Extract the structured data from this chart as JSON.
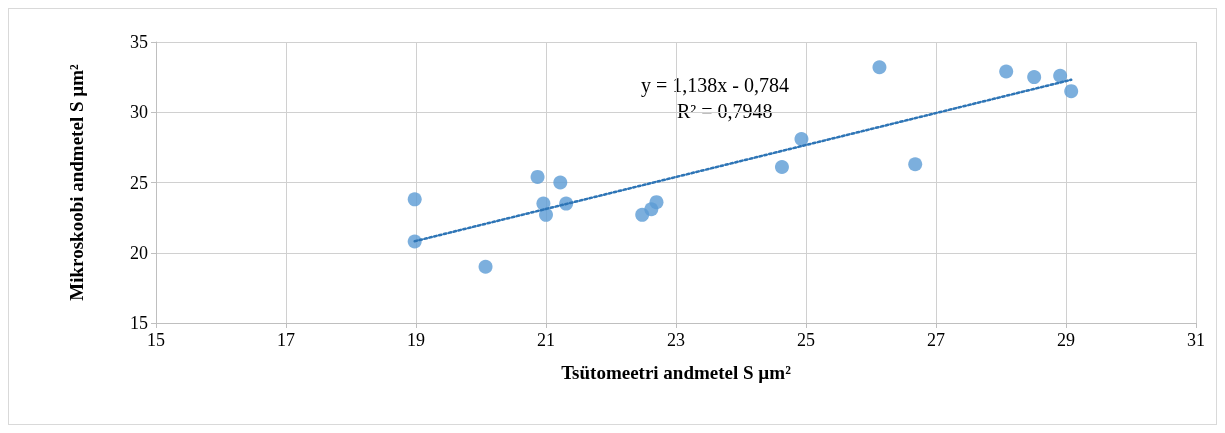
{
  "chart_data": {
    "type": "scatter",
    "xlabel": "Tsütomeetri andmetel S µm²",
    "ylabel": "Mikroskoobi andmetel S µm²",
    "xlim": [
      15,
      31
    ],
    "xticks": [
      15,
      17,
      19,
      21,
      23,
      25,
      27,
      29,
      31
    ],
    "ylim": [
      15,
      35
    ],
    "yticks": [
      15,
      20,
      25,
      30,
      35
    ],
    "grid": true,
    "marker": "circle",
    "series": [
      {
        "color": "#5b9bd5",
        "x": [
          18.98,
          18.98,
          20.07,
          20.87,
          20.96,
          21.0,
          21.22,
          21.31,
          22.48,
          22.62,
          22.7,
          24.63,
          24.93,
          26.13,
          26.68,
          28.08,
          28.51,
          28.91,
          29.08
        ],
        "values": [
          20.8,
          23.8,
          19.0,
          25.4,
          23.5,
          22.7,
          25.0,
          23.5,
          22.7,
          23.1,
          23.6,
          26.1,
          28.1,
          33.2,
          26.3,
          32.9,
          32.5,
          32.6,
          31.5
        ]
      },
      {
        "type": "line",
        "color": "#2e75b6",
        "line_style": "dotted",
        "marker": "none",
        "x": [
          18.98,
          29.08
        ],
        "values": [
          20.82,
          32.31
        ]
      }
    ],
    "annotations": [
      "y = 1,138x - 0,784",
      "R² = 0,7948"
    ]
  }
}
